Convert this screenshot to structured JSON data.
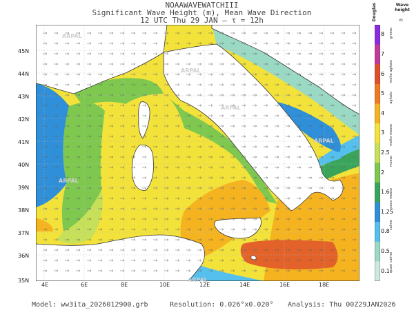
{
  "header": {
    "line1": "NOAAWAVEWATCHIII",
    "line2": "Significant Wave Height (m), Mean Wave Direction",
    "line3": "12 UTC Thu 29 JAN  —  τ = 12h"
  },
  "axes": {
    "lat_labels": [
      "45N",
      "44N",
      "43N",
      "42N",
      "41N",
      "40N",
      "39N",
      "38N",
      "37N",
      "36N",
      "35N"
    ],
    "lon_labels": [
      "4E",
      "6E",
      "8E",
      "10E",
      "12E",
      "14E",
      "16E",
      "18E"
    ]
  },
  "watermark": "ARPAL",
  "colorbar": {
    "title": "Wave height",
    "unit": "m",
    "scale_name": "Douglas",
    "ticks": [
      "8",
      "7",
      "6",
      "5",
      "4",
      "3",
      "2.5",
      "2",
      "1.6",
      "1.25",
      "0.8",
      "0.5",
      "0.1"
    ],
    "descriptors": [
      "grosso",
      "molto agitato",
      "agitato",
      "molto mosso",
      "mosso",
      "poco mosso",
      "calmo",
      "quasi calmo"
    ],
    "colors": [
      "#8a2be2",
      "#c03a98",
      "#e04f2a",
      "#f07a22",
      "#f5b41f",
      "#f5e23a",
      "#c7e05a",
      "#7ec850",
      "#3aa55a",
      "#2f8fd8",
      "#55c0ee",
      "#9ad9c3",
      "#cfe8df"
    ]
  },
  "footer": {
    "model": "Model: ww3ita_2026012900.grb",
    "resolution": "Resolution: 0.026°x0.020°",
    "analysis": "Analysis: Thu 00Z29JAN2026"
  },
  "icons": {
    "direction_arrow": "arrow-icon"
  }
}
